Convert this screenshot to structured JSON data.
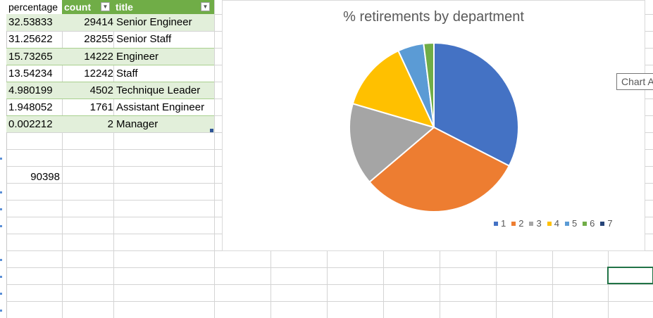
{
  "table": {
    "headers": {
      "percentage": "percentage",
      "count": "count",
      "title": "title"
    },
    "rows": [
      {
        "percentage": "32.53833",
        "count": "29414",
        "title": "Senior Engineer"
      },
      {
        "percentage": "31.25622",
        "count": "28255",
        "title": "Senior Staff"
      },
      {
        "percentage": "15.73265",
        "count": "14222",
        "title": "Engineer"
      },
      {
        "percentage": "13.54234",
        "count": "12242",
        "title": "Staff"
      },
      {
        "percentage": "4.980199",
        "count": "4502",
        "title": "Technique Leader"
      },
      {
        "percentage": "1.948052",
        "count": "1761",
        "title": "Assistant Engineer"
      },
      {
        "percentage": "0.002212",
        "count": "2",
        "title": "Manager"
      }
    ],
    "total": "90398",
    "accent_color": "#70ad47",
    "band_color": "#e2efda"
  },
  "chart_data": {
    "type": "pie",
    "title": "% retirements by department",
    "categories": [
      "1",
      "2",
      "3",
      "4",
      "5",
      "6",
      "7"
    ],
    "values": [
      32.53833,
      31.25622,
      15.73265,
      13.54234,
      4.980199,
      1.948052,
      0.002212
    ],
    "colors": [
      "#4472c4",
      "#ed7d31",
      "#a5a5a5",
      "#ffc000",
      "#5b9bd5",
      "#70ad47",
      "#264478"
    ],
    "legend": "bottom-right"
  },
  "tooltip": {
    "text": "Chart A"
  }
}
